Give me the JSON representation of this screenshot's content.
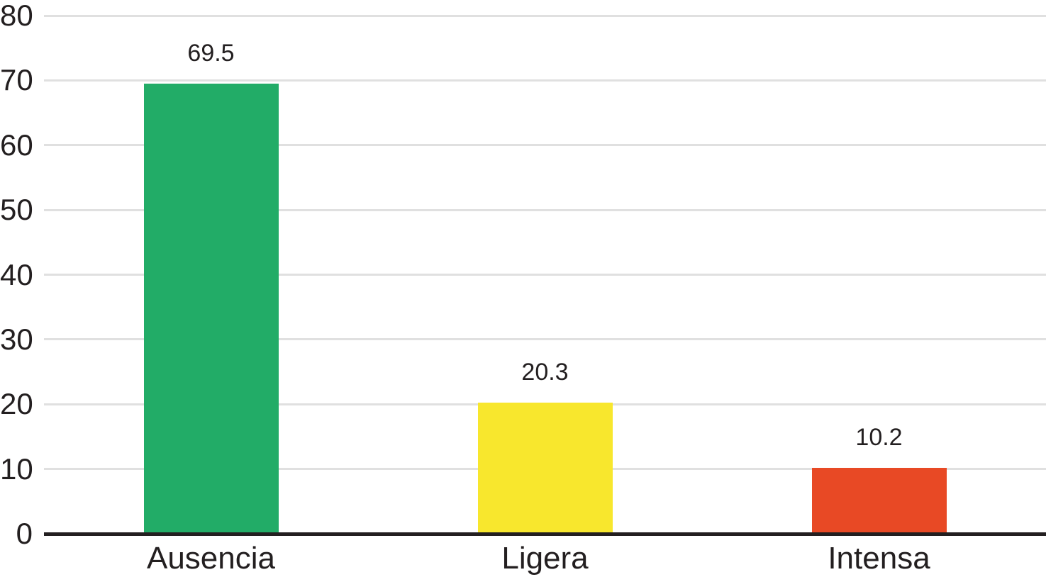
{
  "chart_data": {
    "type": "bar",
    "categories": [
      "Ausencia",
      "Ligera",
      "Intensa"
    ],
    "values": [
      69.5,
      20.3,
      10.2
    ],
    "value_labels": [
      "69.5",
      "20.3",
      "10.2"
    ],
    "bar_colors": [
      "#22ac67",
      "#f8e72d",
      "#e84925"
    ],
    "title": "",
    "xlabel": "",
    "ylabel": "",
    "ylim": [
      0,
      80
    ],
    "yticks": [
      0,
      10,
      20,
      30,
      40,
      50,
      60,
      70,
      80
    ],
    "ytick_labels": [
      "0",
      "10",
      "20",
      "30",
      "40",
      "50",
      "60",
      "70",
      "80"
    ],
    "grid": true,
    "legend": false,
    "gridline_color": "#e0e0e0",
    "axis_color": "#231f20",
    "text_color": "#231f20",
    "background_color": "#ffffff"
  }
}
